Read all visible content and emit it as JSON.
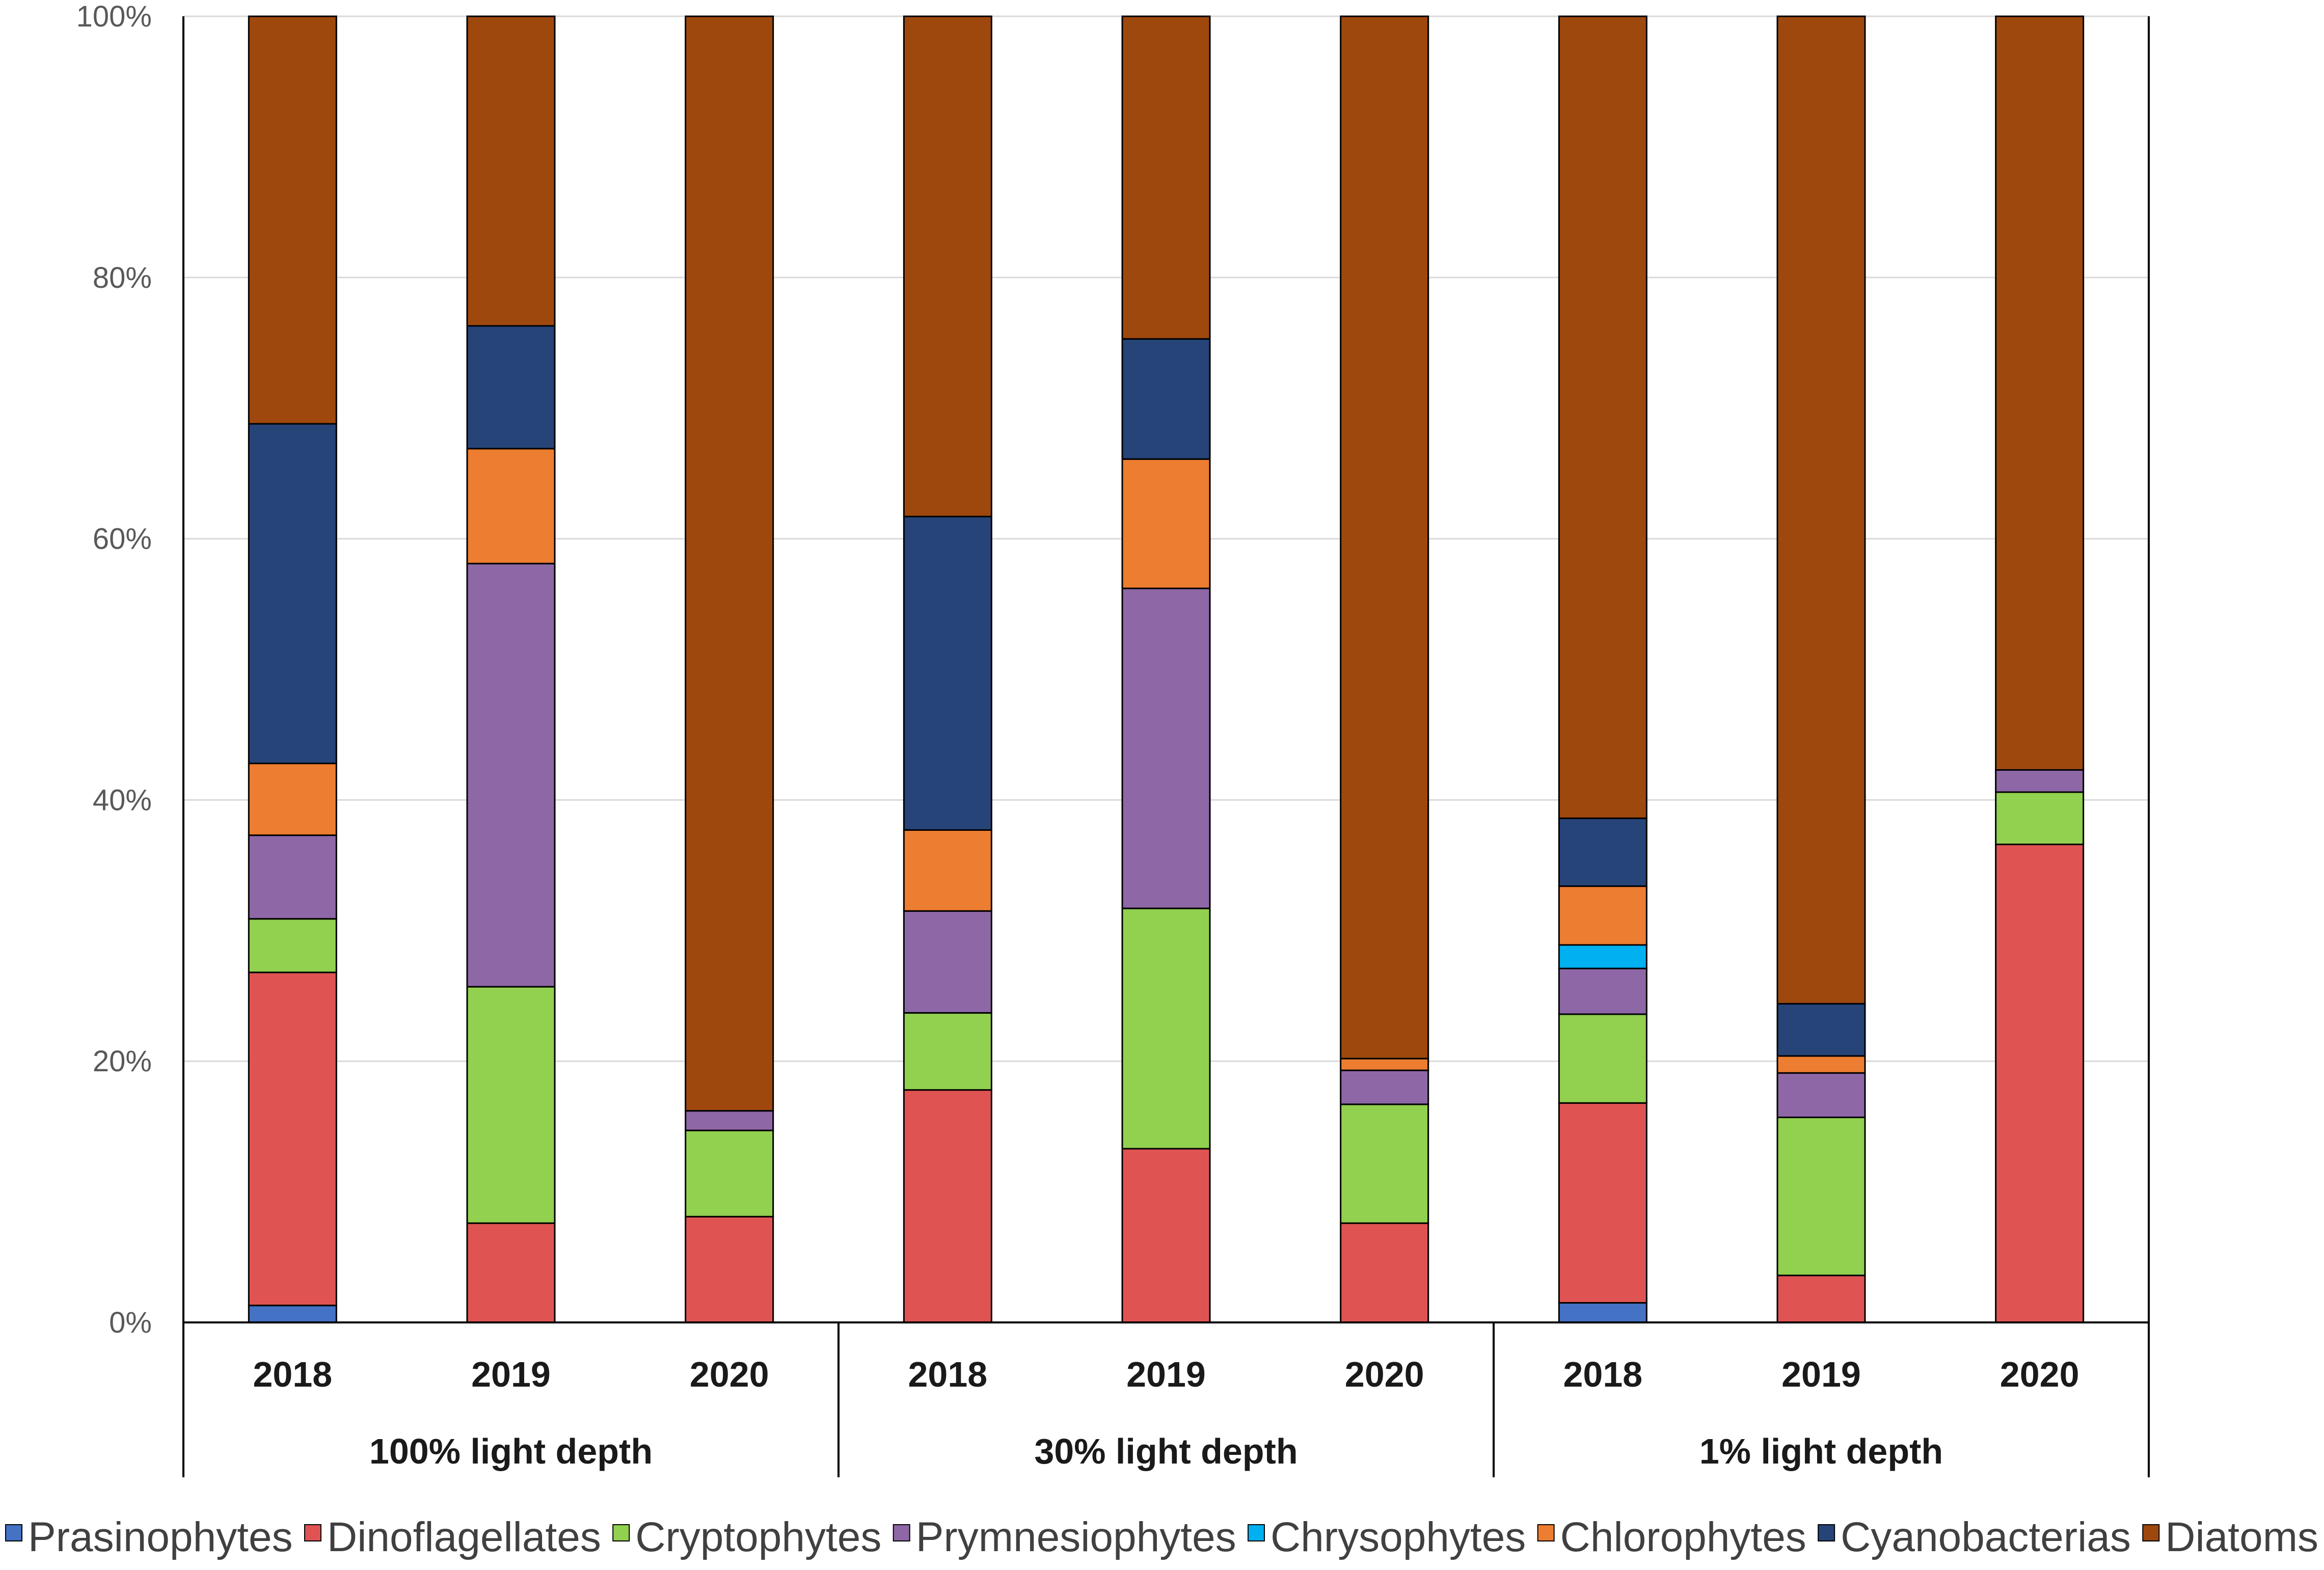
{
  "chart_data": {
    "type": "bar",
    "stacked": true,
    "percent": true,
    "title": "",
    "xlabel": "",
    "ylabel": "",
    "ylim": [
      0,
      100
    ],
    "yticks": [
      "0%",
      "20%",
      "40%",
      "60%",
      "80%",
      "100%"
    ],
    "groups": [
      "100% light depth",
      "30% light depth",
      "1% light depth"
    ],
    "categories": [
      "2018",
      "2019",
      "2020",
      "2018",
      "2019",
      "2020",
      "2018",
      "2019",
      "2020"
    ],
    "legend_position": "bottom",
    "series": [
      {
        "name": "Prasinophytes",
        "color": "#4472C4",
        "values": [
          1.3,
          0,
          0,
          0,
          0,
          0,
          1.5,
          0,
          0
        ]
      },
      {
        "name": "Dinoflagellates",
        "color": "#E05353",
        "values": [
          25.5,
          7.6,
          8.1,
          17.8,
          13.3,
          7.6,
          15.3,
          3.6,
          36.6
        ]
      },
      {
        "name": "Cryptophytes",
        "color": "#92D050",
        "values": [
          4.1,
          18.1,
          6.6,
          5.9,
          18.4,
          9.1,
          6.8,
          12.1,
          4.0
        ]
      },
      {
        "name": "Prymnesiophytes",
        "color": "#8E67A6",
        "values": [
          6.4,
          32.4,
          1.5,
          7.8,
          24.5,
          2.6,
          3.5,
          3.4,
          1.7
        ]
      },
      {
        "name": "Chrysophytes",
        "color": "#00B0F0",
        "values": [
          0,
          0,
          0,
          0,
          0,
          0,
          1.8,
          0,
          0
        ]
      },
      {
        "name": "Chlorophytes",
        "color": "#ED7D31",
        "values": [
          5.5,
          8.8,
          0,
          6.2,
          9.9,
          0.9,
          4.5,
          1.3,
          0
        ]
      },
      {
        "name": "Cyanobacterias",
        "color": "#264478",
        "values": [
          26.0,
          9.4,
          0,
          24.0,
          9.2,
          0,
          5.2,
          4.0,
          0
        ]
      },
      {
        "name": "Diatoms",
        "color": "#9E480E",
        "values": [
          31.2,
          23.7,
          83.8,
          38.3,
          24.7,
          79.8,
          61.4,
          75.6,
          57.7
        ]
      }
    ]
  }
}
